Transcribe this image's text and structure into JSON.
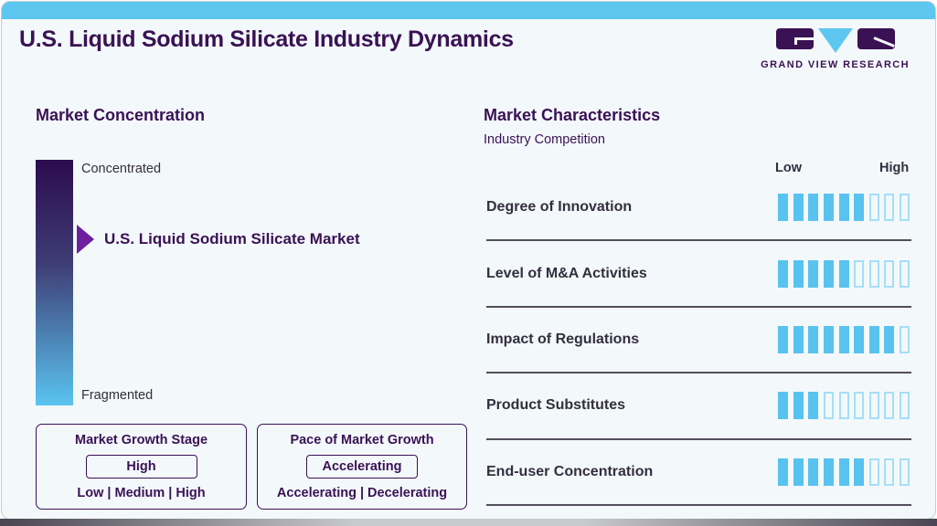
{
  "header": {
    "title": "U.S. Liquid Sodium Silicate Industry Dynamics",
    "logo_text": "GRAND VIEW RESEARCH"
  },
  "market_concentration": {
    "heading": "Market Concentration",
    "scale_top_label": "Concentrated",
    "scale_bottom_label": "Fragmented",
    "marker_label": "U.S. Liquid Sodium Silicate Market",
    "growth_stage": {
      "title": "Market Growth Stage",
      "value": "High",
      "options_label": "Low | Medium | High"
    },
    "growth_pace": {
      "title": "Pace of Market Growth",
      "value": "Accelerating",
      "options_label": "Accelerating | Decelerating"
    }
  },
  "market_characteristics": {
    "heading": "Market Characteristics",
    "subheading": "Industry Competition",
    "scale_low_label": "Low",
    "scale_high_label": "High",
    "rows": [
      {
        "label": "Degree of Innovation",
        "filled": 6,
        "total": 9
      },
      {
        "label": "Level of M&A Activities",
        "filled": 5,
        "total": 9
      },
      {
        "label": "Impact of Regulations",
        "filled": 8,
        "total": 9
      },
      {
        "label": "Product Substitutes",
        "filled": 3,
        "total": 9
      },
      {
        "label": "End-user Concentration",
        "filled": 6,
        "total": 9
      }
    ]
  },
  "colors": {
    "accent_blue": "#5ec7f0",
    "brand_purple": "#3a1254",
    "arrow_purple": "#6d1f9e",
    "gradient_top": "#2c0c4e",
    "gradient_bottom": "#5ac4f0",
    "bar_filled": "#58c3ef",
    "bar_empty_border": "#a5def7",
    "text_dark": "#332f3d"
  },
  "chart_data": [
    {
      "type": "scale",
      "title": "Market Concentration",
      "axis_labels": [
        "Concentrated",
        "Fragmented"
      ],
      "orientation": "vertical",
      "marker": {
        "label": "U.S. Liquid Sodium Silicate Market",
        "position_pct_from_concentrated": 32
      }
    },
    {
      "type": "bar",
      "title": "Market Characteristics",
      "subtitle": "Industry Competition",
      "categories": [
        "Degree of Innovation",
        "Level of M&A Activities",
        "Impact of Regulations",
        "Product Substitutes",
        "End-user Concentration"
      ],
      "values": [
        6,
        5,
        8,
        3,
        6
      ],
      "scale": {
        "min_label": "Low",
        "max_label": "High",
        "max": 9
      },
      "xlabel": "",
      "ylabel": "",
      "legend": false
    },
    {
      "type": "table",
      "title": "Growth summary",
      "rows": [
        {
          "metric": "Market Growth Stage",
          "value": "High",
          "options": "Low | Medium | High"
        },
        {
          "metric": "Pace of Market Growth",
          "value": "Accelerating",
          "options": "Accelerating | Decelerating"
        }
      ]
    }
  ]
}
